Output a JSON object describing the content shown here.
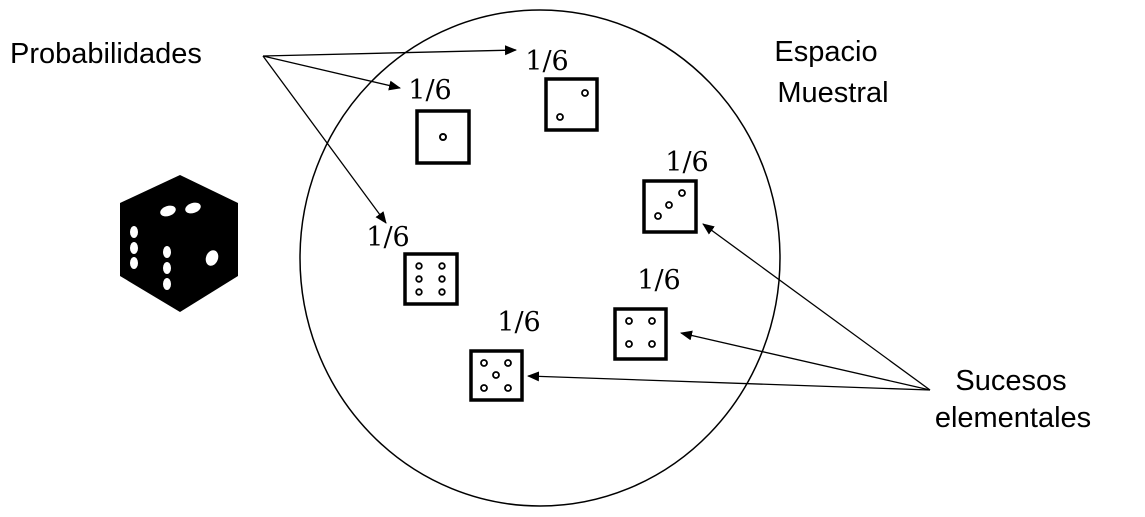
{
  "labels": {
    "probabilities": "Probabilidades",
    "sample_space_line1": "Espacio",
    "sample_space_line2": "Muestral",
    "elementary_events_line1": "Sucesos",
    "elementary_events_line2": "elementales"
  },
  "outcomes": [
    {
      "face": 1,
      "probability": "1/6"
    },
    {
      "face": 2,
      "probability": "1/6"
    },
    {
      "face": 3,
      "probability": "1/6"
    },
    {
      "face": 4,
      "probability": "1/6"
    },
    {
      "face": 5,
      "probability": "1/6"
    },
    {
      "face": 6,
      "probability": "1/6"
    }
  ],
  "icons": {
    "die": "die-icon",
    "sample_space": "sample-space-circle"
  },
  "colors": {
    "ink": "#000000",
    "background": "#ffffff"
  }
}
